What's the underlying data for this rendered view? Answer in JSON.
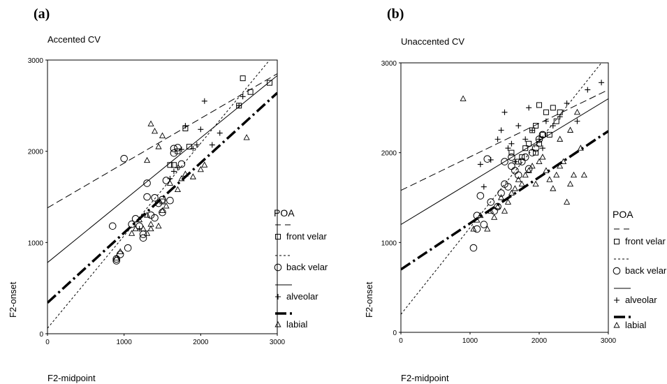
{
  "chart_data": [
    {
      "type": "scatter",
      "panel_label": "(a)",
      "title": "Accented CV",
      "xlabel": "F2-midpoint",
      "ylabel": "F2-onset",
      "xlim": [
        0,
        3000
      ],
      "ylim": [
        0,
        3000
      ],
      "xticks": [
        "0",
        "1000",
        "2000",
        "3000"
      ],
      "yticks": [
        "0",
        "1000",
        "2000",
        "3000"
      ],
      "grid": false,
      "legend": {
        "title": "POA",
        "placement": "right",
        "entries": [
          "front velar",
          "back velar",
          "alveolar",
          "labial"
        ]
      },
      "series": [
        {
          "name": "front velar",
          "marker": "square",
          "line": "dashed",
          "regression": [
            [
              0,
              1380
            ],
            [
              3000,
              2850
            ]
          ],
          "points": [
            [
              1500,
              1450
            ],
            [
              1600,
              1850
            ],
            [
              1650,
              1850
            ],
            [
              1700,
              2000
            ],
            [
              1800,
              2250
            ],
            [
              1850,
              2050
            ],
            [
              2500,
              2500
            ],
            [
              2550,
              2800
            ],
            [
              2650,
              2650
            ],
            [
              2900,
              2750
            ]
          ]
        },
        {
          "name": "back velar",
          "marker": "circle",
          "line": "dotted",
          "regression": [
            [
              0,
              60
            ],
            [
              2900,
              3000
            ]
          ],
          "points": [
            [
              850,
              1180
            ],
            [
              900,
              820
            ],
            [
              950,
              870
            ],
            [
              1000,
              1920
            ],
            [
              1050,
              940
            ],
            [
              1100,
              1200
            ],
            [
              1150,
              1260
            ],
            [
              1200,
              1180
            ],
            [
              1250,
              1050
            ],
            [
              1250,
              1090
            ],
            [
              1300,
              1500
            ],
            [
              1300,
              1650
            ],
            [
              1350,
              1300
            ],
            [
              1400,
              1270
            ],
            [
              1400,
              1490
            ],
            [
              1450,
              1430
            ],
            [
              1500,
              1470
            ],
            [
              1500,
              1330
            ],
            [
              1550,
              1680
            ],
            [
              1600,
              1460
            ],
            [
              1650,
              2030
            ],
            [
              1650,
              1980
            ],
            [
              1700,
              2040
            ],
            [
              1750,
              1860
            ],
            [
              900,
              800
            ]
          ]
        },
        {
          "name": "alveolar",
          "marker": "plus",
          "line": "solid",
          "regression": [
            [
              0,
              780
            ],
            [
              3000,
              2830
            ]
          ],
          "points": [
            [
              1200,
              1150
            ],
            [
              1600,
              1700
            ],
            [
              1650,
              1780
            ],
            [
              1700,
              1820
            ],
            [
              1750,
              2020
            ],
            [
              1800,
              2280
            ],
            [
              1900,
              2030
            ],
            [
              1950,
              2070
            ],
            [
              2000,
              2240
            ],
            [
              2050,
              2550
            ],
            [
              2150,
              2070
            ],
            [
              2500,
              2500
            ],
            [
              2550,
              2600
            ],
            [
              2250,
              2200
            ]
          ]
        },
        {
          "name": "labial",
          "marker": "triangle",
          "line": "dashdot-bold",
          "regression": [
            [
              0,
              340
            ],
            [
              3000,
              2640
            ]
          ],
          "points": [
            [
              900,
              830
            ],
            [
              950,
              900
            ],
            [
              1100,
              1100
            ],
            [
              1150,
              1150
            ],
            [
              1200,
              1250
            ],
            [
              1250,
              1150
            ],
            [
              1300,
              1100
            ],
            [
              1300,
              1300
            ],
            [
              1350,
              1200
            ],
            [
              1350,
              2300
            ],
            [
              1400,
              2220
            ],
            [
              1450,
              1180
            ],
            [
              1450,
              2050
            ],
            [
              1500,
              1350
            ],
            [
              1500,
              2170
            ],
            [
              1550,
              1400
            ],
            [
              1600,
              1650
            ],
            [
              1700,
              1580
            ],
            [
              1750,
              1700
            ],
            [
              1800,
              1750
            ],
            [
              1900,
              1720
            ],
            [
              2000,
              1800
            ],
            [
              2050,
              1850
            ],
            [
              2600,
              2150
            ],
            [
              1300,
              1900
            ],
            [
              1350,
              1150
            ]
          ]
        }
      ]
    },
    {
      "type": "scatter",
      "panel_label": "(b)",
      "title": "Unaccented CV",
      "xlabel": "F2-midpoint",
      "ylabel": "F2-onset",
      "xlim": [
        0,
        3000
      ],
      "ylim": [
        0,
        3000
      ],
      "xticks": [
        "0",
        "1000",
        "2000",
        "3000"
      ],
      "yticks": [
        "0",
        "1000",
        "2000",
        "3000"
      ],
      "grid": false,
      "legend": {
        "title": "POA",
        "placement": "right",
        "entries": [
          "front velar",
          "back velar",
          "alveolar",
          "labial"
        ]
      },
      "series": [
        {
          "name": "front velar",
          "marker": "square",
          "line": "dashed",
          "regression": [
            [
              0,
              1580
            ],
            [
              3000,
              2700
            ]
          ],
          "points": [
            [
              1600,
              2000
            ],
            [
              1700,
              1900
            ],
            [
              1750,
              1950
            ],
            [
              1800,
              2050
            ],
            [
              1850,
              2100
            ],
            [
              1900,
              2250
            ],
            [
              1950,
              2300
            ],
            [
              2000,
              2530
            ],
            [
              2050,
              2200
            ],
            [
              2100,
              2450
            ],
            [
              2150,
              2200
            ],
            [
              2200,
              2500
            ],
            [
              2250,
              2350
            ],
            [
              2300,
              2450
            ],
            [
              2000,
              2100
            ],
            [
              1950,
              2000
            ]
          ]
        },
        {
          "name": "back velar",
          "marker": "circle",
          "line": "dotted",
          "regression": [
            [
              0,
              200
            ],
            [
              2900,
              3000
            ]
          ],
          "points": [
            [
              1050,
              940
            ],
            [
              1100,
              1300
            ],
            [
              1100,
              1150
            ],
            [
              1150,
              1520
            ],
            [
              1200,
              1200
            ],
            [
              1250,
              1930
            ],
            [
              1300,
              1450
            ],
            [
              1350,
              1350
            ],
            [
              1400,
              1400
            ],
            [
              1450,
              1550
            ],
            [
              1500,
              1650
            ],
            [
              1500,
              1900
            ],
            [
              1550,
              1620
            ],
            [
              1600,
              1850
            ],
            [
              1650,
              1800
            ],
            [
              1700,
              1750
            ],
            [
              1750,
              1900
            ],
            [
              1800,
              1950
            ],
            [
              1850,
              1820
            ],
            [
              1900,
              2000
            ],
            [
              1950,
              2050
            ],
            [
              2000,
              2150
            ],
            [
              2050,
              2200
            ],
            [
              1600,
              1950
            ]
          ]
        },
        {
          "name": "alveolar",
          "marker": "plus",
          "line": "solid",
          "regression": [
            [
              0,
              1200
            ],
            [
              3000,
              2600
            ]
          ],
          "points": [
            [
              1150,
              1870
            ],
            [
              1200,
              1620
            ],
            [
              1300,
              1920
            ],
            [
              1400,
              2150
            ],
            [
              1450,
              2250
            ],
            [
              1500,
              2450
            ],
            [
              1550,
              2050
            ],
            [
              1600,
              2100
            ],
            [
              1700,
              2300
            ],
            [
              1800,
              2150
            ],
            [
              1850,
              2500
            ],
            [
              1900,
              2250
            ],
            [
              2000,
              2150
            ],
            [
              2050,
              2050
            ],
            [
              2100,
              2350
            ],
            [
              2200,
              2300
            ],
            [
              2300,
              2400
            ],
            [
              2400,
              2550
            ],
            [
              2550,
              2350
            ],
            [
              2700,
              2700
            ],
            [
              2900,
              2780
            ],
            [
              1650,
              1900
            ]
          ]
        },
        {
          "name": "labial",
          "marker": "triangle",
          "line": "dashdot-bold",
          "regression": [
            [
              0,
              700
            ],
            [
              3000,
              2240
            ]
          ],
          "points": [
            [
              900,
              2600
            ],
            [
              1050,
              1150
            ],
            [
              1100,
              1250
            ],
            [
              1150,
              1300
            ],
            [
              1250,
              1150
            ],
            [
              1300,
              1350
            ],
            [
              1350,
              1280
            ],
            [
              1400,
              1400
            ],
            [
              1450,
              1500
            ],
            [
              1500,
              1350
            ],
            [
              1550,
              1450
            ],
            [
              1600,
              1550
            ],
            [
              1650,
              1600
            ],
            [
              1700,
              1700
            ],
            [
              1750,
              1650
            ],
            [
              1800,
              1750
            ],
            [
              1850,
              1800
            ],
            [
              1900,
              1850
            ],
            [
              1950,
              1650
            ],
            [
              2000,
              1900
            ],
            [
              2050,
              1950
            ],
            [
              2100,
              1800
            ],
            [
              2150,
              1700
            ],
            [
              2200,
              1600
            ],
            [
              2250,
              1750
            ],
            [
              2300,
              1850
            ],
            [
              2350,
              1900
            ],
            [
              2400,
              1450
            ],
            [
              2450,
              1650
            ],
            [
              2500,
              1750
            ],
            [
              2550,
              2450
            ],
            [
              2600,
              2050
            ],
            [
              2650,
              1750
            ],
            [
              2300,
              2150
            ],
            [
              2450,
              2250
            ]
          ]
        }
      ]
    }
  ]
}
